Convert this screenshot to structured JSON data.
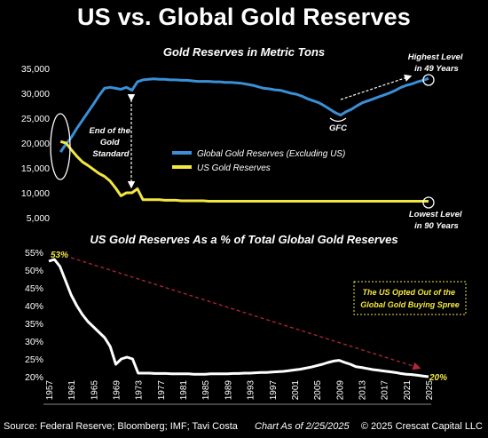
{
  "title": "US vs. Global Gold Reserves",
  "footer": {
    "source": "Source: Federal Reserve; Bloomberg; IMF; Tavi Costa",
    "as_of": "Chart As of 2/25/2025",
    "copyright": "© 2025 Crescat Capital LLC"
  },
  "chart_data": [
    {
      "type": "line",
      "title": "Gold Reserves in Metric Tons",
      "ylim": [
        5000,
        35000
      ],
      "yticks": [
        "35,000",
        "30,000",
        "25,000",
        "20,000",
        "15,000",
        "10,000",
        "5,000"
      ],
      "ytick_values": [
        35000,
        30000,
        25000,
        20000,
        15000,
        10000,
        5000
      ],
      "xlim": [
        1957,
        2025
      ],
      "colors": {
        "global": "#3a8fd6",
        "us": "#f2e641"
      },
      "legend": [
        "Global Gold Reserves (Excluding US)",
        "US Gold Reserves"
      ],
      "series": [
        {
          "name": "Global Gold Reserves (Excluding US)",
          "x": [
            1958,
            1959,
            1960,
            1961,
            1962,
            1963,
            1964,
            1965,
            1966,
            1967,
            1968,
            1969,
            1970,
            1971,
            1972,
            1973,
            1974,
            1975,
            1976,
            1977,
            1978,
            1979,
            1980,
            1981,
            1982,
            1983,
            1984,
            1985,
            1986,
            1987,
            1988,
            1989,
            1990,
            1991,
            1992,
            1993,
            1994,
            1995,
            1996,
            1997,
            1998,
            1999,
            2000,
            2001,
            2002,
            2003,
            2004,
            2005,
            2006,
            2007,
            2008,
            2009,
            2010,
            2011,
            2012,
            2013,
            2014,
            2015,
            2016,
            2017,
            2018,
            2019,
            2020,
            2021,
            2022,
            2023,
            2024,
            2025
          ],
          "y": [
            18200,
            19800,
            21200,
            23000,
            24600,
            26200,
            27800,
            29500,
            31000,
            31200,
            31000,
            30800,
            31200,
            30600,
            32300,
            32700,
            32800,
            32900,
            32800,
            32800,
            32700,
            32700,
            32600,
            32600,
            32500,
            32400,
            32400,
            32400,
            32300,
            32300,
            32200,
            32200,
            32100,
            32000,
            31800,
            31600,
            31300,
            31000,
            30900,
            30700,
            30600,
            30300,
            30000,
            29800,
            29400,
            28900,
            28500,
            28100,
            27500,
            26800,
            26100,
            25600,
            26300,
            26800,
            27500,
            28100,
            28500,
            28900,
            29300,
            29700,
            30100,
            30600,
            31200,
            31600,
            31900,
            32300,
            32600,
            33000
          ]
        },
        {
          "name": "US Gold Reserves",
          "x": [
            1958,
            1959,
            1960,
            1961,
            1962,
            1963,
            1964,
            1965,
            1966,
            1967,
            1968,
            1969,
            1970,
            1971,
            1972,
            1973,
            1974,
            1975,
            1976,
            1977,
            1978,
            1979,
            1980,
            1981,
            1982,
            1983,
            1984,
            1985,
            1986,
            1987,
            1988,
            1989,
            1990,
            1991,
            1992,
            1993,
            1994,
            1995,
            1996,
            1997,
            1998,
            1999,
            2000,
            2001,
            2002,
            2003,
            2004,
            2005,
            2006,
            2007,
            2008,
            2009,
            2010,
            2011,
            2012,
            2013,
            2014,
            2015,
            2016,
            2017,
            2018,
            2019,
            2020,
            2021,
            2022,
            2023,
            2024,
            2025
          ],
          "y": [
            20300,
            20000,
            18600,
            17300,
            16200,
            15500,
            14700,
            13900,
            13300,
            12400,
            11000,
            9400,
            10000,
            10000,
            10800,
            8600,
            8600,
            8600,
            8600,
            8500,
            8500,
            8500,
            8400,
            8400,
            8400,
            8400,
            8400,
            8300,
            8300,
            8300,
            8300,
            8300,
            8300,
            8300,
            8300,
            8300,
            8300,
            8300,
            8300,
            8300,
            8300,
            8300,
            8300,
            8300,
            8300,
            8300,
            8300,
            8300,
            8300,
            8300,
            8300,
            8300,
            8300,
            8300,
            8300,
            8300,
            8300,
            8300,
            8300,
            8300,
            8300,
            8300,
            8300,
            8300,
            8300,
            8300,
            8300,
            8300
          ]
        }
      ],
      "annotations": {
        "gold_standard": [
          "End of the",
          "Gold",
          "Standard"
        ],
        "gfc": "GFC",
        "highest": [
          "Highest Level",
          "in 49 Years"
        ],
        "lowest": [
          "Lowest Level",
          "in 90 Years"
        ]
      }
    },
    {
      "type": "line",
      "title": "US Gold Reserves As a % of Total Global Gold Reserves",
      "ylim": [
        20,
        55
      ],
      "yticks": [
        "55%",
        "50%",
        "45%",
        "40%",
        "35%",
        "30%",
        "25%",
        "20%"
      ],
      "ytick_values": [
        55,
        50,
        45,
        40,
        35,
        30,
        25,
        20
      ],
      "xlim": [
        1957,
        2025
      ],
      "xticks": [
        "1957",
        "1961",
        "1965",
        "1969",
        "1973",
        "1977",
        "1981",
        "1985",
        "1989",
        "1993",
        "1997",
        "2001",
        "2005",
        "2009",
        "2013",
        "2017",
        "2021",
        "2025"
      ],
      "xtick_values": [
        1957,
        1961,
        1965,
        1969,
        1973,
        1977,
        1981,
        1985,
        1989,
        1993,
        1997,
        2001,
        2005,
        2009,
        2013,
        2017,
        2021,
        2025
      ],
      "color": "#ffffff",
      "series": [
        {
          "name": "",
          "x": [
            1957,
            1958,
            1959,
            1960,
            1961,
            1962,
            1963,
            1964,
            1965,
            1966,
            1967,
            1968,
            1969,
            1970,
            1971,
            1972,
            1973,
            1974,
            1975,
            1976,
            1977,
            1978,
            1979,
            1980,
            1981,
            1982,
            1983,
            1984,
            1985,
            1986,
            1987,
            1988,
            1989,
            1990,
            1991,
            1992,
            1993,
            1994,
            1995,
            1996,
            1997,
            1998,
            1999,
            2000,
            2001,
            2002,
            2003,
            2004,
            2005,
            2006,
            2007,
            2008,
            2009,
            2010,
            2011,
            2012,
            2013,
            2014,
            2015,
            2016,
            2017,
            2018,
            2019,
            2020,
            2021,
            2022,
            2023,
            2024,
            2025
          ],
          "y": [
            52.5,
            53,
            51,
            47,
            43,
            40,
            37.5,
            35.5,
            34,
            32.5,
            31,
            28.5,
            23.5,
            25,
            25.5,
            25,
            21,
            21,
            21,
            20.9,
            20.9,
            20.9,
            20.8,
            20.8,
            20.8,
            20.8,
            20.7,
            20.7,
            20.7,
            20.8,
            20.8,
            20.8,
            20.8,
            20.9,
            20.9,
            21,
            21,
            21.1,
            21.2,
            21.2,
            21.3,
            21.4,
            21.5,
            21.7,
            21.9,
            22.1,
            22.4,
            22.7,
            23.1,
            23.5,
            24,
            24.4,
            24.6,
            24,
            23.5,
            22.8,
            22.6,
            22.3,
            22,
            21.8,
            21.6,
            21.4,
            21.2,
            20.9,
            20.7,
            20.6,
            20.4,
            20.2,
            20
          ]
        }
      ],
      "annotations": {
        "start": "53%",
        "end": "20%",
        "box": [
          "The US Opted Out of the",
          "Global Gold Buying Spree"
        ]
      }
    }
  ]
}
